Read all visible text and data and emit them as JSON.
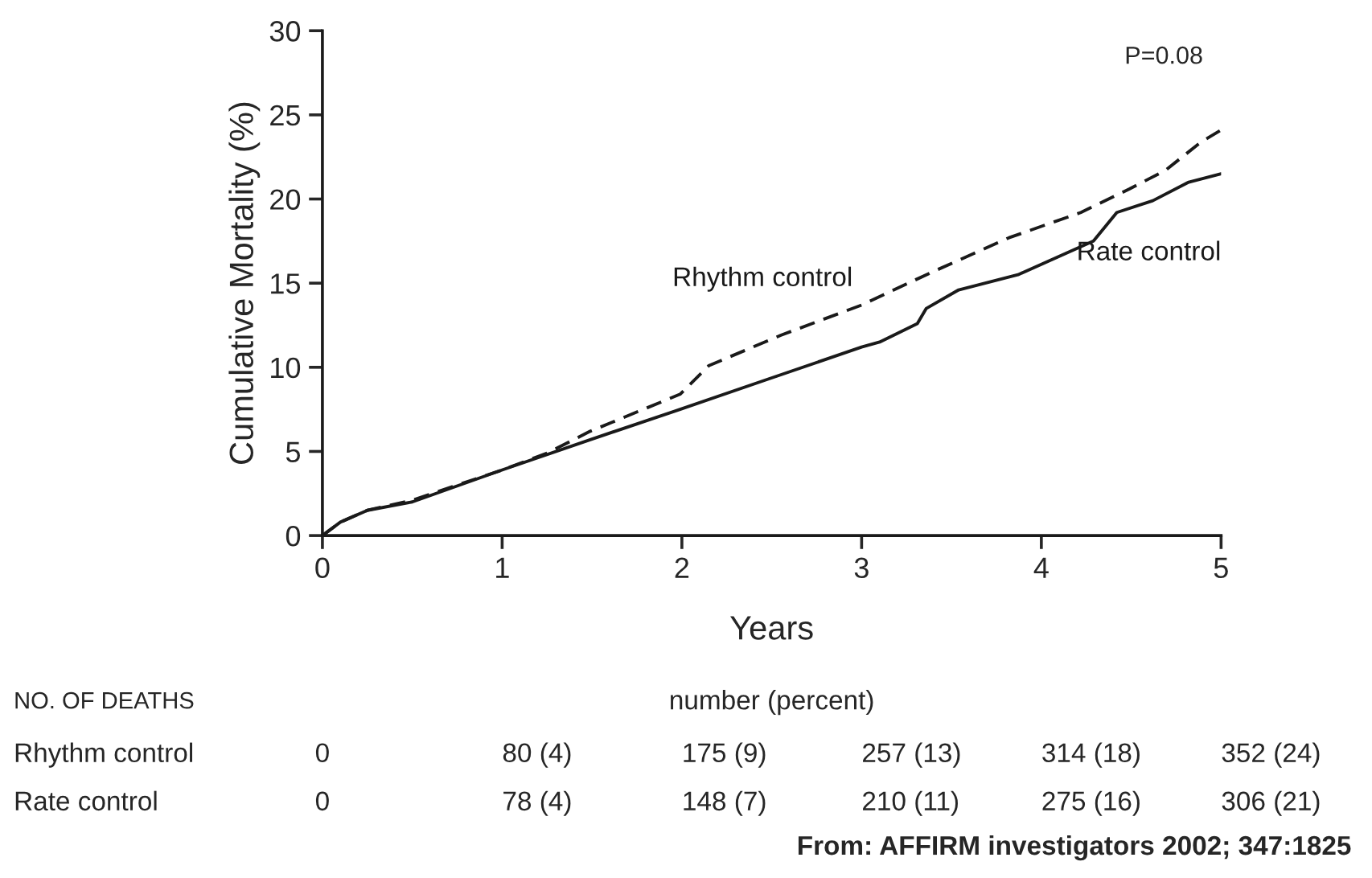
{
  "chart_data": {
    "type": "line",
    "xlabel": "Years",
    "ylabel": "Cumulative Mortality (%)",
    "xlim": [
      0,
      5
    ],
    "xticks": [
      0,
      1,
      2,
      3,
      4,
      5
    ],
    "ylim": [
      0,
      30
    ],
    "yticks": [
      0,
      5,
      10,
      15,
      20,
      25,
      30
    ],
    "grid": false,
    "legend": false,
    "series": [
      {
        "name": "Rhythm control",
        "color": "#1a1a1a",
        "line_style": "dashed",
        "x": [
          0,
          0.1,
          0.25,
          0.5,
          1,
          1.25,
          1.49,
          1.99,
          2.15,
          2.55,
          3.0,
          3.38,
          3.82,
          4.22,
          4.49,
          4.69,
          4.89,
          5
        ],
        "values": [
          0,
          0.8,
          1.5,
          2.1,
          3.9,
          4.9,
          6.2,
          8.4,
          10.1,
          11.9,
          13.7,
          15.6,
          17.7,
          19.2,
          20.6,
          21.7,
          23.4,
          24.1
        ]
      },
      {
        "name": "Rate control",
        "color": "#1a1a1a",
        "line_style": "solid",
        "x": [
          0,
          0.1,
          0.25,
          0.5,
          1,
          1.49,
          1.99,
          2.48,
          3.0,
          3.1,
          3.31,
          3.36,
          3.54,
          3.87,
          4.29,
          4.42,
          4.62,
          4.82,
          5
        ],
        "values": [
          0,
          0.8,
          1.5,
          2.0,
          3.9,
          5.7,
          7.5,
          9.3,
          11.2,
          11.5,
          12.6,
          13.5,
          14.6,
          15.5,
          17.5,
          19.2,
          19.9,
          21.0,
          21.5
        ]
      }
    ],
    "annotations": [
      "P=0.08",
      "NO. OF DEATHS",
      "number (percent)",
      "Rhythm control",
      "0",
      "80 (4)",
      "175 (9)",
      "257 (13)",
      "314 (18)",
      "352 (24)",
      "Rate control",
      "0",
      "78 (4)",
      "148 (7)",
      "210 (11)",
      "275 (16)",
      "306 (21)",
      "From: AFFIRM investigators 2002; 347:1825"
    ]
  }
}
